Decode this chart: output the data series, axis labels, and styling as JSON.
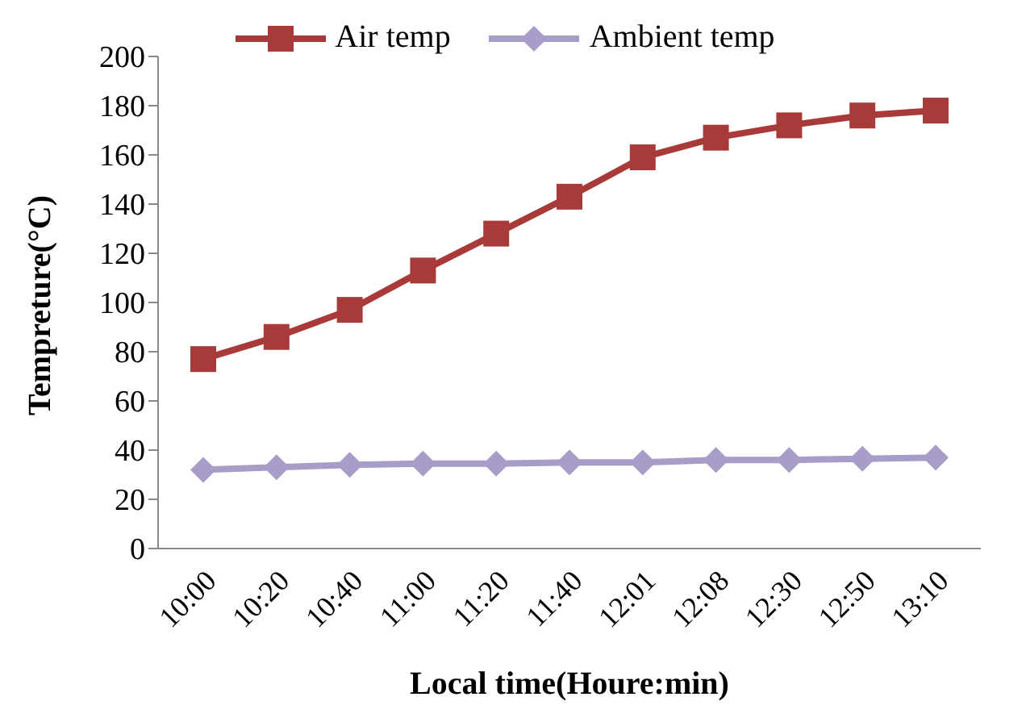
{
  "chart_data": {
    "type": "line",
    "xlabel": "Local time(Houre:min)",
    "ylabel": "Tempreture(°C)",
    "categories": [
      "10:00",
      "10:20",
      "10:40",
      "11:00",
      "11:20",
      "11:40",
      "12:01",
      "12:08",
      "12:30",
      "12:50",
      "13:10"
    ],
    "series": [
      {
        "name": "Air  temp",
        "color": "#a83a3a",
        "marker": "square",
        "values": [
          77,
          86,
          97,
          113,
          128,
          143,
          159,
          167,
          172,
          176,
          178
        ]
      },
      {
        "name": "Ambient temp",
        "color": "#a89cc8",
        "marker": "diamond",
        "values": [
          32,
          33,
          34,
          34.5,
          34.5,
          35,
          35,
          36,
          36,
          36.5,
          37
        ]
      }
    ],
    "ylim": [
      0,
      200
    ],
    "yticks": [
      0,
      20,
      40,
      60,
      80,
      100,
      120,
      140,
      160,
      180,
      200
    ],
    "grid": false,
    "legend": "top",
    "line_style": "solid"
  }
}
